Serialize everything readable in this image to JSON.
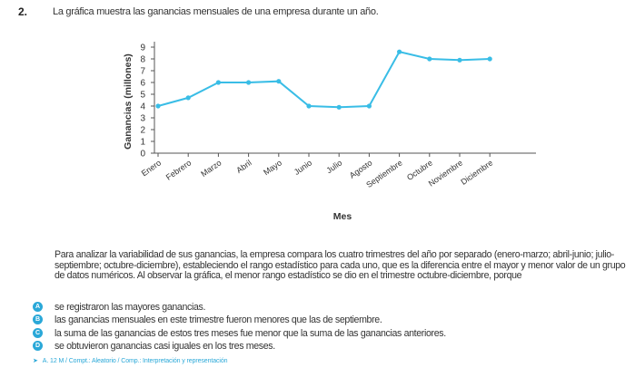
{
  "question": {
    "number": "2.",
    "text": "La gráfica muestra las ganancias mensuales de una empresa durante un año."
  },
  "chart_data": {
    "type": "line",
    "x": [
      "Enero",
      "Febrero",
      "Marzo",
      "Abril",
      "Mayo",
      "Junio",
      "Julio",
      "Agosto",
      "Septiembre",
      "Octubre",
      "Noviembre",
      "Diciembre"
    ],
    "values": [
      4,
      4.7,
      6,
      6,
      6.1,
      4,
      3.9,
      4,
      8.6,
      8,
      7.9,
      8
    ],
    "xlabel": "Mes",
    "ylabel": "Ganancias (millones)",
    "ylim": [
      0,
      9
    ],
    "yticks": [
      "0",
      "1",
      "2",
      "3",
      "4",
      "5",
      "6",
      "7",
      "8",
      "9"
    ],
    "grid": false,
    "line_color": "#39bde6"
  },
  "paragraph": "Para analizar la variabilidad de sus ganancias, la empresa compara los cuatro trimestres del año por separado (enero-marzo; abril-junio; julio-septiembre; octubre-diciembre), estableciendo el rango estadístico para cada uno, que es la diferencia entre el mayor y menor valor de un grupo de datos numéricos. Al observar la gráfica, el menor rango estadístico se dio en el trimestre octubre-diciembre, porque",
  "options": [
    {
      "letter": "A",
      "text": "se registraron las mayores ganancias."
    },
    {
      "letter": "B",
      "text": "las ganancias mensuales en este trimestre fueron menores que las de septiembre."
    },
    {
      "letter": "C",
      "text": "la suma de las ganancias de estos tres meses fue menor que la suma de las ganancias anteriores."
    },
    {
      "letter": "D",
      "text": "se obtuvieron ganancias casi iguales en los tres meses."
    }
  ],
  "meta": "A. 12 M / Compt.: Aleatorio / Comp.: Interpretación y representación",
  "accent_color": "#2aa8d8"
}
